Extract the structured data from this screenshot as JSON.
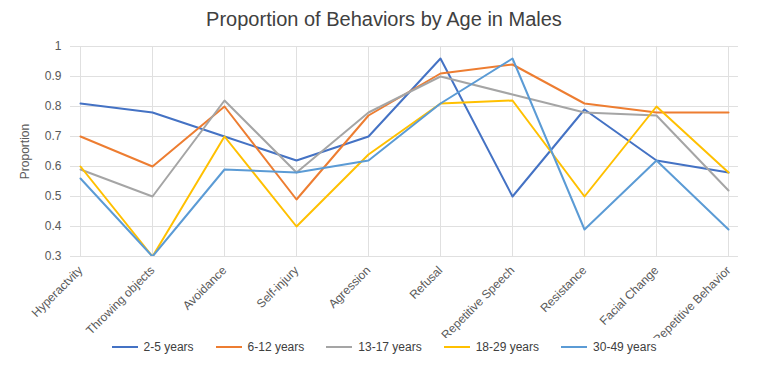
{
  "chart_data": {
    "type": "line",
    "title": "Proportion of Behaviors by Age in Males",
    "y_label": "Proportion",
    "categories": [
      "Hyperactvity",
      "Throwing objects",
      "Avoidance",
      "Self-injury",
      "Agression",
      "Refusal",
      "Repetitive Speech",
      "Resistance",
      "Facial Change",
      "Repetitive Behavior"
    ],
    "series": [
      {
        "name": "2-5 years",
        "color": "#4472c4",
        "values": [
          0.81,
          0.78,
          0.7,
          0.62,
          0.7,
          0.96,
          0.5,
          0.79,
          0.62,
          0.58
        ]
      },
      {
        "name": "6-12 years",
        "color": "#ed7d31",
        "values": [
          0.7,
          0.6,
          0.8,
          0.49,
          0.77,
          0.91,
          0.94,
          0.81,
          0.78,
          0.78
        ]
      },
      {
        "name": "13-17 years",
        "color": "#a5a5a5",
        "values": [
          0.59,
          0.5,
          0.82,
          0.58,
          0.78,
          0.9,
          0.84,
          0.78,
          0.77,
          0.52
        ]
      },
      {
        "name": "18-29 years",
        "color": "#ffc000",
        "values": [
          0.6,
          0.3,
          0.7,
          0.4,
          0.64,
          0.81,
          0.82,
          0.5,
          0.8,
          0.58
        ]
      },
      {
        "name": "30-49 years",
        "color": "#5b9bd5",
        "values": [
          0.56,
          0.3,
          0.59,
          0.58,
          0.62,
          0.81,
          0.96,
          0.39,
          0.62,
          0.39
        ]
      }
    ],
    "ylim": [
      0.3,
      1
    ],
    "yticks": [
      0.3,
      0.4,
      0.5,
      0.6,
      0.7,
      0.8,
      0.9,
      1
    ],
    "grid": true,
    "legend": "bottom"
  }
}
